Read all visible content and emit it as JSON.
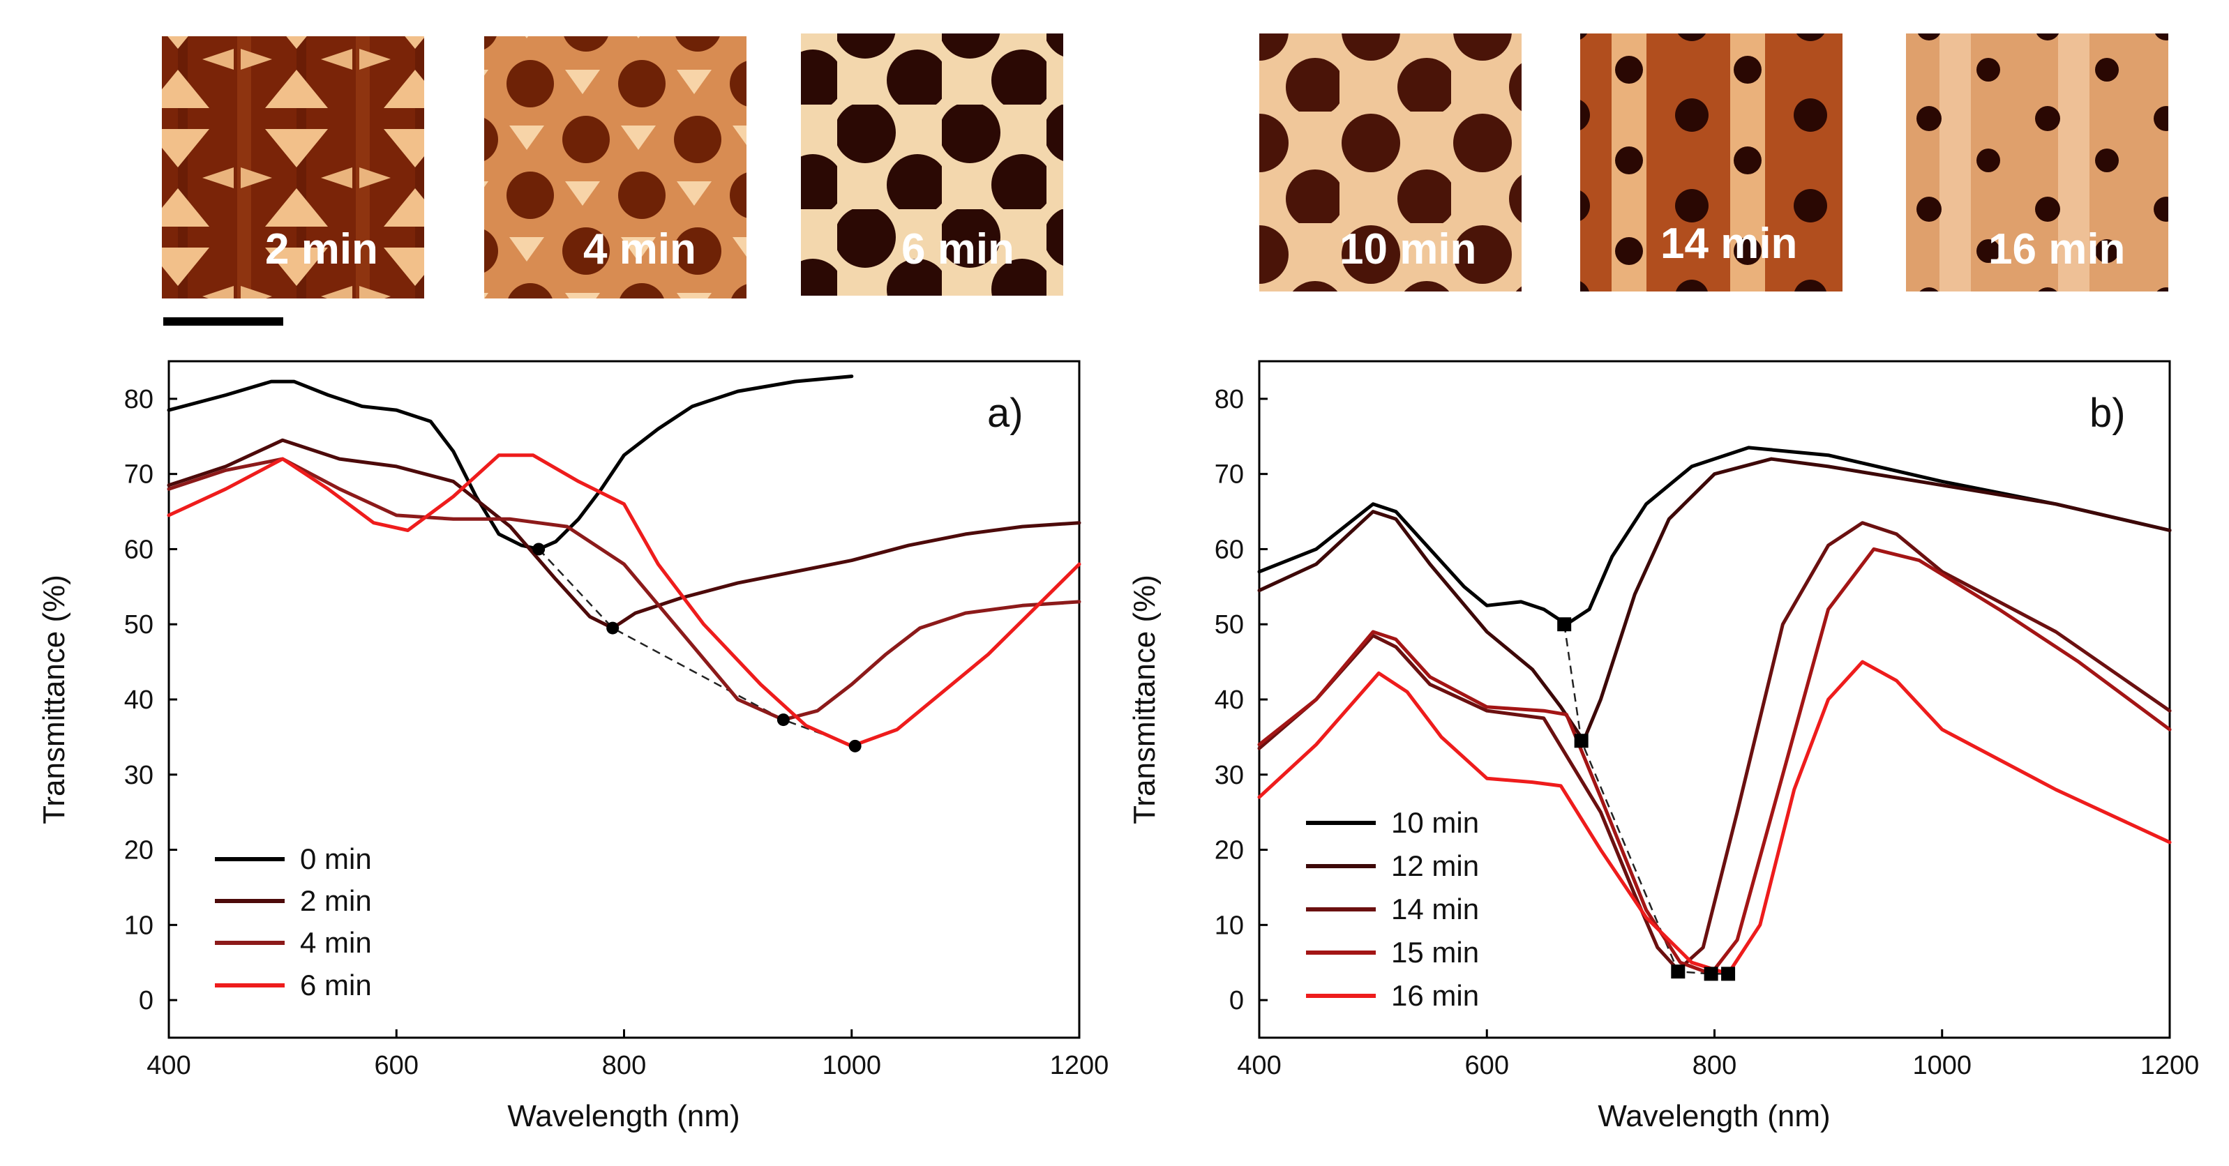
{
  "afm_images": [
    {
      "label": "2 min"
    },
    {
      "label": "4 min"
    },
    {
      "label": "6 min"
    },
    {
      "label": "10 min"
    },
    {
      "label": "14 min"
    },
    {
      "label": "16 min"
    }
  ],
  "chart_data": [
    {
      "type": "line",
      "panel_label": "a)",
      "xlabel": "Wavelength (nm)",
      "ylabel": "Transmittance (%)",
      "xlim": [
        400,
        1200
      ],
      "ylim": [
        -5,
        85
      ],
      "xticks": [
        400,
        600,
        800,
        1000,
        1200
      ],
      "yticks": [
        0,
        10,
        20,
        30,
        40,
        50,
        60,
        70,
        80
      ],
      "legend": [
        "0 min",
        "2 min",
        "4 min",
        "6 min"
      ],
      "series": [
        {
          "name": "0 min",
          "color": "#000000",
          "x": [
            400,
            450,
            490,
            510,
            540,
            570,
            600,
            630,
            650,
            670,
            690,
            710,
            725,
            740,
            760,
            780,
            800,
            830,
            860,
            900,
            950,
            1000
          ],
          "y": [
            78.5,
            80.5,
            82.3,
            82.3,
            80.5,
            79,
            78.5,
            77,
            73,
            67,
            62,
            60.5,
            60,
            61,
            64,
            68,
            72.5,
            76,
            79,
            81,
            82.3,
            83
          ]
        },
        {
          "name": "2 min",
          "color": "#4d0a0a",
          "x": [
            400,
            450,
            500,
            550,
            600,
            650,
            700,
            740,
            770,
            790,
            810,
            850,
            900,
            950,
            1000,
            1050,
            1100,
            1150,
            1200
          ],
          "y": [
            68.5,
            71,
            74.5,
            72,
            71,
            69,
            63,
            56,
            51,
            49.5,
            51.5,
            53.5,
            55.5,
            57,
            58.5,
            60.5,
            62,
            63,
            63.5
          ]
        },
        {
          "name": "4 min",
          "color": "#8c1a1a",
          "x": [
            400,
            450,
            500,
            550,
            600,
            650,
            700,
            750,
            800,
            850,
            900,
            940,
            970,
            1000,
            1030,
            1060,
            1100,
            1150,
            1200
          ],
          "y": [
            68,
            70.5,
            72,
            68,
            64.5,
            64,
            64,
            63,
            58,
            49,
            40,
            37.3,
            38.5,
            42,
            46,
            49.5,
            51.5,
            52.5,
            53
          ]
        },
        {
          "name": "6 min",
          "color": "#ee1c1c",
          "x": [
            400,
            450,
            500,
            540,
            580,
            610,
            650,
            690,
            720,
            760,
            800,
            830,
            870,
            920,
            960,
            1000,
            1040,
            1080,
            1120,
            1160,
            1200
          ],
          "y": [
            64.5,
            68,
            72,
            68,
            63.5,
            62.5,
            67,
            72.5,
            72.5,
            69,
            66,
            58,
            50,
            42,
            36.5,
            33.8,
            36,
            41,
            46,
            52,
            58
          ]
        }
      ],
      "minima": [
        {
          "x": 725,
          "y": 60
        },
        {
          "x": 790,
          "y": 49.5
        },
        {
          "x": 940,
          "y": 37.3
        },
        {
          "x": 1003,
          "y": 33.8
        }
      ]
    },
    {
      "type": "line",
      "panel_label": "b)",
      "xlabel": "Wavelength (nm)",
      "ylabel": "Transmittance (%)",
      "xlim": [
        400,
        1200
      ],
      "ylim": [
        -5,
        85
      ],
      "xticks": [
        400,
        600,
        800,
        1000,
        1200
      ],
      "yticks": [
        0,
        10,
        20,
        30,
        40,
        50,
        60,
        70,
        80
      ],
      "legend": [
        "10 min",
        "12 min",
        "14 min",
        "15 min",
        "16 min"
      ],
      "series": [
        {
          "name": "10 min",
          "color": "#000000",
          "x": [
            400,
            450,
            500,
            520,
            550,
            580,
            600,
            630,
            650,
            670,
            690,
            710,
            740,
            780,
            830,
            900,
            1000,
            1100,
            1200
          ],
          "y": [
            57,
            60,
            66,
            65,
            60,
            55,
            52.5,
            53,
            52,
            50,
            52,
            59,
            66,
            71,
            73.5,
            72.5,
            69,
            66,
            62.5
          ]
        },
        {
          "name": "12 min",
          "color": "#3d0808",
          "x": [
            400,
            450,
            500,
            520,
            550,
            600,
            640,
            665,
            685,
            700,
            730,
            760,
            800,
            850,
            900,
            1000,
            1100,
            1200
          ],
          "y": [
            54.5,
            58,
            65,
            64,
            58,
            49,
            44,
            39,
            34.5,
            40,
            54,
            64,
            70,
            72,
            71,
            68.5,
            66,
            62.5
          ]
        },
        {
          "name": "14 min",
          "color": "#6b1010",
          "x": [
            400,
            450,
            500,
            520,
            550,
            600,
            650,
            700,
            730,
            750,
            768,
            790,
            820,
            860,
            900,
            930,
            960,
            1000,
            1100,
            1200
          ],
          "y": [
            33.5,
            40,
            48.5,
            47,
            42,
            38.5,
            37.5,
            25,
            14,
            7,
            4,
            7,
            25,
            50,
            60.5,
            63.5,
            62,
            57,
            49,
            38.5
          ]
        },
        {
          "name": "15 min",
          "color": "#a31515",
          "x": [
            400,
            450,
            500,
            520,
            550,
            600,
            650,
            670,
            700,
            740,
            770,
            797,
            820,
            860,
            900,
            940,
            980,
            1050,
            1120,
            1200
          ],
          "y": [
            34,
            40,
            49,
            48,
            43,
            39,
            38.5,
            38,
            27,
            12,
            5,
            3.5,
            8,
            30,
            52,
            60,
            58.5,
            52,
            45,
            36
          ]
        },
        {
          "name": "16 min",
          "color": "#ee1c1c",
          "x": [
            400,
            450,
            505,
            530,
            560,
            600,
            640,
            665,
            700,
            740,
            780,
            812,
            840,
            870,
            900,
            930,
            960,
            1000,
            1100,
            1200
          ],
          "y": [
            27,
            34,
            43.5,
            41,
            35,
            29.5,
            29,
            28.5,
            20,
            11,
            5,
            3.5,
            10,
            28,
            40,
            45,
            42.5,
            36,
            28,
            21
          ]
        }
      ],
      "minima": [
        {
          "x": 668,
          "y": 50
        },
        {
          "x": 683,
          "y": 34.5
        },
        {
          "x": 768,
          "y": 3.8
        },
        {
          "x": 797,
          "y": 3.5
        },
        {
          "x": 812,
          "y": 3.5
        }
      ]
    }
  ]
}
